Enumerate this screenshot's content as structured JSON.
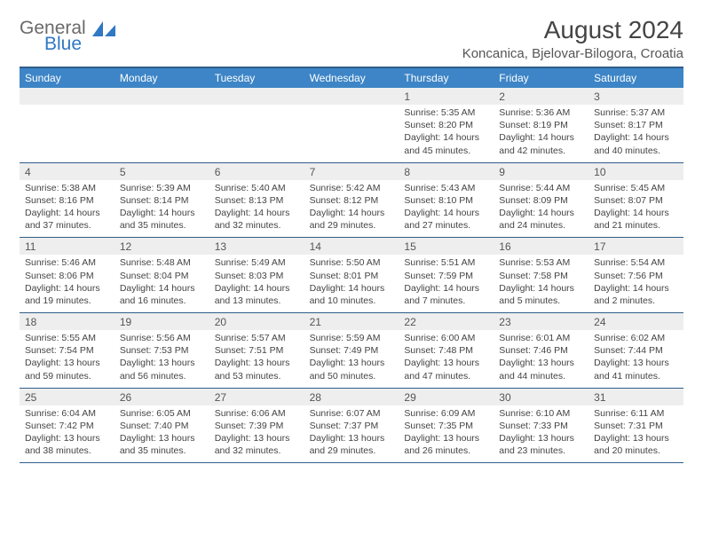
{
  "logo": {
    "general": "General",
    "blue": "Blue"
  },
  "title": "August 2024",
  "subtitle": "Koncanica, Bjelovar-Bilogora, Croatia",
  "colors": {
    "header_bg": "#3d85c6",
    "header_text": "#ffffff",
    "daynum_bg": "#eeeeee",
    "border": "#2f5d8a",
    "text": "#444444",
    "logo_gray": "#6a6a6a",
    "logo_blue": "#2f78c3"
  },
  "day_headers": [
    "Sunday",
    "Monday",
    "Tuesday",
    "Wednesday",
    "Thursday",
    "Friday",
    "Saturday"
  ],
  "weeks": [
    {
      "nums": [
        "",
        "",
        "",
        "",
        "1",
        "2",
        "3"
      ],
      "info": [
        "",
        "",
        "",
        "",
        "Sunrise: 5:35 AM\nSunset: 8:20 PM\nDaylight: 14 hours and 45 minutes.",
        "Sunrise: 5:36 AM\nSunset: 8:19 PM\nDaylight: 14 hours and 42 minutes.",
        "Sunrise: 5:37 AM\nSunset: 8:17 PM\nDaylight: 14 hours and 40 minutes."
      ]
    },
    {
      "nums": [
        "4",
        "5",
        "6",
        "7",
        "8",
        "9",
        "10"
      ],
      "info": [
        "Sunrise: 5:38 AM\nSunset: 8:16 PM\nDaylight: 14 hours and 37 minutes.",
        "Sunrise: 5:39 AM\nSunset: 8:14 PM\nDaylight: 14 hours and 35 minutes.",
        "Sunrise: 5:40 AM\nSunset: 8:13 PM\nDaylight: 14 hours and 32 minutes.",
        "Sunrise: 5:42 AM\nSunset: 8:12 PM\nDaylight: 14 hours and 29 minutes.",
        "Sunrise: 5:43 AM\nSunset: 8:10 PM\nDaylight: 14 hours and 27 minutes.",
        "Sunrise: 5:44 AM\nSunset: 8:09 PM\nDaylight: 14 hours and 24 minutes.",
        "Sunrise: 5:45 AM\nSunset: 8:07 PM\nDaylight: 14 hours and 21 minutes."
      ]
    },
    {
      "nums": [
        "11",
        "12",
        "13",
        "14",
        "15",
        "16",
        "17"
      ],
      "info": [
        "Sunrise: 5:46 AM\nSunset: 8:06 PM\nDaylight: 14 hours and 19 minutes.",
        "Sunrise: 5:48 AM\nSunset: 8:04 PM\nDaylight: 14 hours and 16 minutes.",
        "Sunrise: 5:49 AM\nSunset: 8:03 PM\nDaylight: 14 hours and 13 minutes.",
        "Sunrise: 5:50 AM\nSunset: 8:01 PM\nDaylight: 14 hours and 10 minutes.",
        "Sunrise: 5:51 AM\nSunset: 7:59 PM\nDaylight: 14 hours and 7 minutes.",
        "Sunrise: 5:53 AM\nSunset: 7:58 PM\nDaylight: 14 hours and 5 minutes.",
        "Sunrise: 5:54 AM\nSunset: 7:56 PM\nDaylight: 14 hours and 2 minutes."
      ]
    },
    {
      "nums": [
        "18",
        "19",
        "20",
        "21",
        "22",
        "23",
        "24"
      ],
      "info": [
        "Sunrise: 5:55 AM\nSunset: 7:54 PM\nDaylight: 13 hours and 59 minutes.",
        "Sunrise: 5:56 AM\nSunset: 7:53 PM\nDaylight: 13 hours and 56 minutes.",
        "Sunrise: 5:57 AM\nSunset: 7:51 PM\nDaylight: 13 hours and 53 minutes.",
        "Sunrise: 5:59 AM\nSunset: 7:49 PM\nDaylight: 13 hours and 50 minutes.",
        "Sunrise: 6:00 AM\nSunset: 7:48 PM\nDaylight: 13 hours and 47 minutes.",
        "Sunrise: 6:01 AM\nSunset: 7:46 PM\nDaylight: 13 hours and 44 minutes.",
        "Sunrise: 6:02 AM\nSunset: 7:44 PM\nDaylight: 13 hours and 41 minutes."
      ]
    },
    {
      "nums": [
        "25",
        "26",
        "27",
        "28",
        "29",
        "30",
        "31"
      ],
      "info": [
        "Sunrise: 6:04 AM\nSunset: 7:42 PM\nDaylight: 13 hours and 38 minutes.",
        "Sunrise: 6:05 AM\nSunset: 7:40 PM\nDaylight: 13 hours and 35 minutes.",
        "Sunrise: 6:06 AM\nSunset: 7:39 PM\nDaylight: 13 hours and 32 minutes.",
        "Sunrise: 6:07 AM\nSunset: 7:37 PM\nDaylight: 13 hours and 29 minutes.",
        "Sunrise: 6:09 AM\nSunset: 7:35 PM\nDaylight: 13 hours and 26 minutes.",
        "Sunrise: 6:10 AM\nSunset: 7:33 PM\nDaylight: 13 hours and 23 minutes.",
        "Sunrise: 6:11 AM\nSunset: 7:31 PM\nDaylight: 13 hours and 20 minutes."
      ]
    }
  ]
}
